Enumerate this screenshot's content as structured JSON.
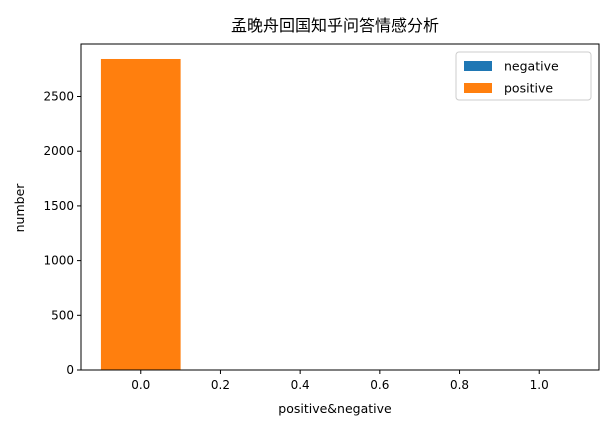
{
  "chart_data": {
    "type": "bar",
    "title": "孟晚舟回国知乎问答情感分析",
    "xlabel": "positive&negative",
    "ylabel": "number",
    "xlim": [
      -0.15,
      1.15
    ],
    "ylim": [
      0,
      2980
    ],
    "xticks": [
      0.0,
      0.2,
      0.4,
      0.6,
      0.8,
      1.0
    ],
    "xtick_labels": [
      "0.0",
      "0.2",
      "0.4",
      "0.6",
      "0.8",
      "1.0"
    ],
    "yticks": [
      0,
      500,
      1000,
      1500,
      2000,
      2500
    ],
    "ytick_labels": [
      "0",
      "500",
      "1000",
      "1500",
      "2000",
      "2500"
    ],
    "bar_width": 0.2,
    "legend_position": "top-right",
    "grid": false,
    "series": [
      {
        "name": "negative",
        "color": "#1f77b4",
        "bars": [
          {
            "x": 0.0,
            "value": 0
          }
        ]
      },
      {
        "name": "positive",
        "color": "#ff7f0e",
        "bars": [
          {
            "x": 0.0,
            "value": 2843
          }
        ]
      }
    ]
  }
}
